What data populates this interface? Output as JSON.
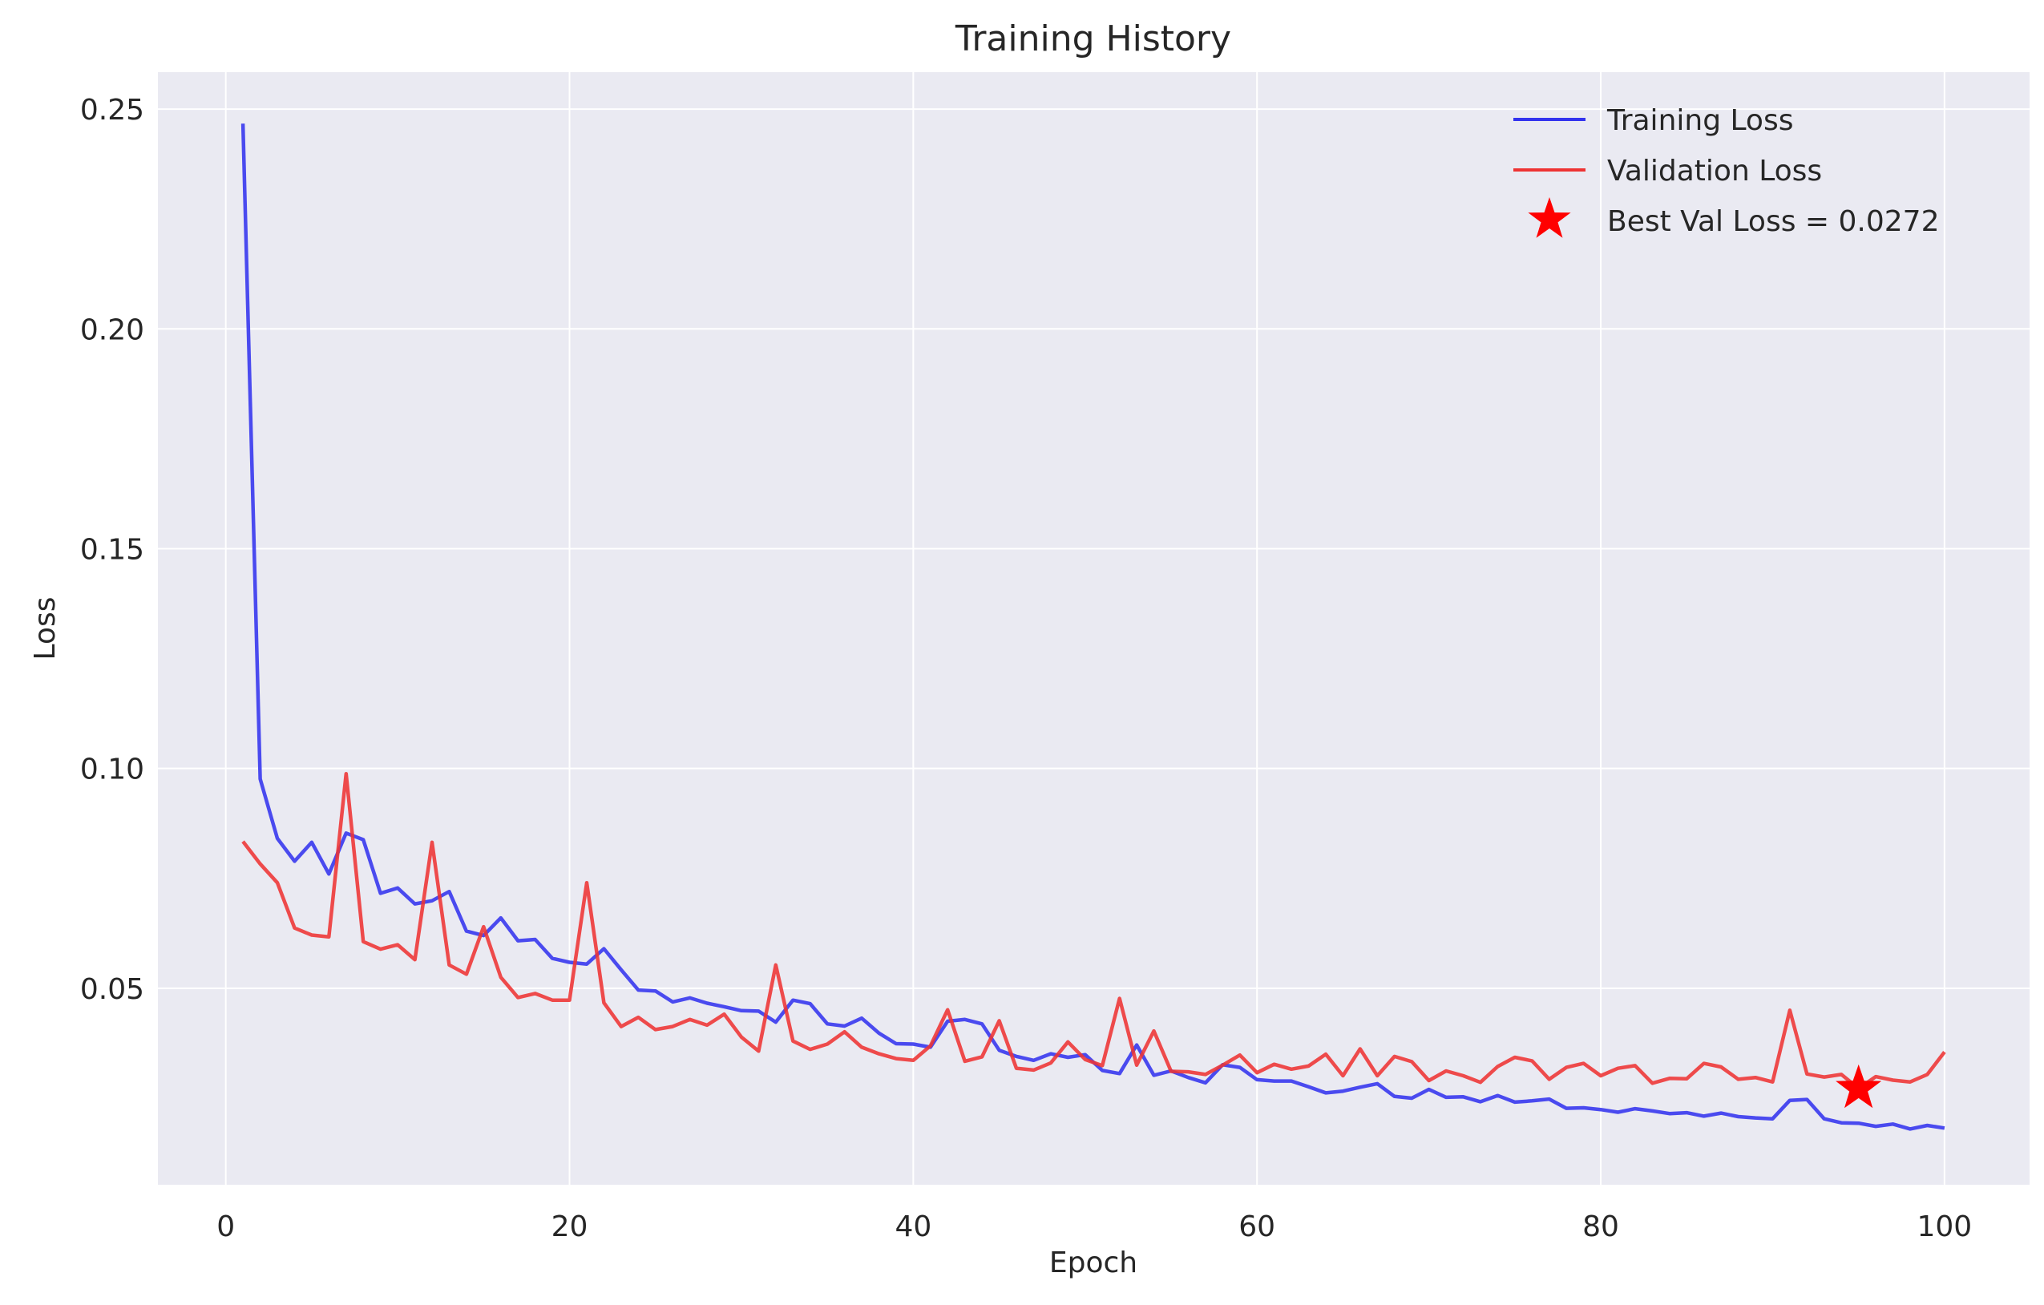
{
  "chart_data": {
    "type": "line",
    "title": "Training History",
    "xlabel": "Epoch",
    "ylabel": "Loss",
    "xlim": [
      -3.95,
      104.95
    ],
    "ylim": [
      0.0053,
      0.2584
    ],
    "xticks": [
      0,
      20,
      40,
      60,
      80,
      100
    ],
    "xtick_labels": [
      "0",
      "20",
      "40",
      "60",
      "80",
      "100"
    ],
    "yticks": [
      0.05,
      0.1,
      0.15,
      0.2,
      0.25
    ],
    "ytick_labels": [
      "0.05",
      "0.10",
      "0.15",
      "0.20",
      "0.25"
    ],
    "grid": true,
    "legend_position": "top-right",
    "colors": {
      "training": "#3333ee",
      "validation": "#ee3333",
      "marker": "#ff0000",
      "background": "#eaeaf2",
      "grid": "#ffffff"
    },
    "x": [
      1,
      2,
      3,
      4,
      5,
      6,
      7,
      8,
      9,
      10,
      11,
      12,
      13,
      14,
      15,
      16,
      17,
      18,
      19,
      20,
      21,
      22,
      23,
      24,
      25,
      26,
      27,
      28,
      29,
      30,
      31,
      32,
      33,
      34,
      35,
      36,
      37,
      38,
      39,
      40,
      41,
      42,
      43,
      44,
      45,
      46,
      47,
      48,
      49,
      50,
      51,
      52,
      53,
      54,
      55,
      56,
      57,
      58,
      59,
      60,
      61,
      62,
      63,
      64,
      65,
      66,
      67,
      68,
      69,
      70,
      71,
      72,
      73,
      74,
      75,
      76,
      77,
      78,
      79,
      80,
      81,
      82,
      83,
      84,
      85,
      86,
      87,
      88,
      89,
      90,
      91,
      92,
      93,
      94,
      95,
      96,
      97,
      98,
      99,
      100
    ],
    "series": [
      {
        "name": "Training Loss",
        "color": "#3333ee",
        "values": [
          0.2467,
          0.0976,
          0.0841,
          0.0789,
          0.0832,
          0.076,
          0.0853,
          0.0838,
          0.0716,
          0.0728,
          0.0692,
          0.0699,
          0.072,
          0.063,
          0.062,
          0.066,
          0.0608,
          0.0611,
          0.0568,
          0.0559,
          0.0555,
          0.059,
          0.0542,
          0.0496,
          0.0494,
          0.0469,
          0.0478,
          0.0466,
          0.0458,
          0.0449,
          0.0448,
          0.0423,
          0.0473,
          0.0465,
          0.0419,
          0.0414,
          0.0432,
          0.0398,
          0.0374,
          0.0373,
          0.0366,
          0.0425,
          0.0429,
          0.0419,
          0.0359,
          0.0345,
          0.0336,
          0.0351,
          0.0343,
          0.0349,
          0.0313,
          0.0306,
          0.0371,
          0.0302,
          0.0312,
          0.0297,
          0.0285,
          0.0326,
          0.032,
          0.0292,
          0.0289,
          0.0289,
          0.0276,
          0.0262,
          0.0266,
          0.0275,
          0.0283,
          0.0254,
          0.025,
          0.027,
          0.0252,
          0.0253,
          0.0242,
          0.0256,
          0.0241,
          0.0244,
          0.0248,
          0.0227,
          0.0228,
          0.0224,
          0.0218,
          0.0226,
          0.0221,
          0.0215,
          0.0217,
          0.0209,
          0.0216,
          0.0208,
          0.0205,
          0.0203,
          0.0245,
          0.0247,
          0.0203,
          0.0194,
          0.0193,
          0.0186,
          0.0191,
          0.018,
          0.0188,
          0.0182
        ]
      },
      {
        "name": "Validation Loss",
        "color": "#ee3333",
        "values": [
          0.0834,
          0.0783,
          0.074,
          0.0637,
          0.0621,
          0.0617,
          0.0988,
          0.0606,
          0.0589,
          0.0599,
          0.0565,
          0.0832,
          0.0553,
          0.0532,
          0.064,
          0.0525,
          0.0479,
          0.0488,
          0.0473,
          0.0473,
          0.074,
          0.0467,
          0.0413,
          0.0434,
          0.0406,
          0.0413,
          0.0429,
          0.0416,
          0.0441,
          0.0389,
          0.0357,
          0.0553,
          0.038,
          0.0361,
          0.0373,
          0.0401,
          0.0366,
          0.0351,
          0.034,
          0.0336,
          0.0369,
          0.0451,
          0.0334,
          0.0344,
          0.0426,
          0.0318,
          0.0314,
          0.033,
          0.0378,
          0.0338,
          0.0324,
          0.0477,
          0.0325,
          0.0403,
          0.0311,
          0.031,
          0.0304,
          0.0325,
          0.0348,
          0.0308,
          0.0327,
          0.0316,
          0.0323,
          0.035,
          0.0301,
          0.0362,
          0.0301,
          0.0345,
          0.0333,
          0.029,
          0.0312,
          0.0301,
          0.0286,
          0.0322,
          0.0343,
          0.0335,
          0.0293,
          0.032,
          0.0329,
          0.0301,
          0.0318,
          0.0324,
          0.0284,
          0.0295,
          0.0294,
          0.0329,
          0.0321,
          0.0293,
          0.0297,
          0.0287,
          0.045,
          0.0305,
          0.0298,
          0.0304,
          0.0272,
          0.0299,
          0.0291,
          0.0287,
          0.0304,
          0.0355
        ]
      }
    ],
    "best_point": {
      "x": 95,
      "y": 0.0272
    },
    "legend": [
      {
        "label": "Training Loss",
        "symbol": "line",
        "color": "#3333ee"
      },
      {
        "label": "Validation Loss",
        "symbol": "line",
        "color": "#ee3333"
      },
      {
        "label": "Best Val Loss = 0.0272",
        "symbol": "star",
        "color": "#ff0000"
      }
    ]
  }
}
